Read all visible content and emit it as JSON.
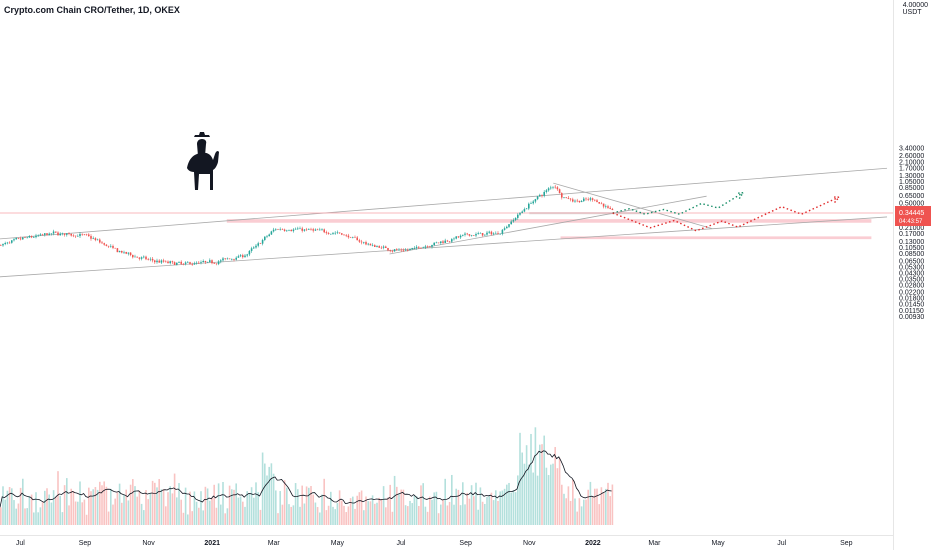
{
  "chart": {
    "title": "Crypto.com Chain CRO/Tether, 1D, OKEX",
    "currency": "USDT",
    "current_price": "0.34445",
    "countdown": "04:43:57",
    "top_label": "4.00000"
  },
  "colors": {
    "up": "#26a69a",
    "down": "#ef5350",
    "zone": "#f8bcc4",
    "trendline": "#a9a9a9",
    "price_line": "#f7a1a8",
    "price_badge": "#ef5350",
    "ma_line": "#131722",
    "green_path": "#1b8f6a",
    "red_path": "#e02a2a",
    "grey_zone": "#d6d6d6"
  },
  "icons": {
    "rider": "cowboy-on-horse-silhouette"
  },
  "chart_data": {
    "type": "candlestick",
    "scale": "log",
    "x_ticks": [
      "Jul",
      "Sep",
      "Nov",
      "2021",
      "Mar",
      "May",
      "Jul",
      "Sep",
      "Nov",
      "2022",
      "Mar",
      "May",
      "Jul",
      "Sep"
    ],
    "y_ticks": [
      "3.40000",
      "2.60000",
      "2.10000",
      "1.70000",
      "1.30000",
      "1.05000",
      "0.85000",
      "0.65000",
      "0.50000",
      "0.40000",
      "0.26000",
      "0.21000",
      "0.17000",
      "0.13000",
      "0.10500",
      "0.08500",
      "0.06500",
      "0.05300",
      "0.04300",
      "0.03500",
      "0.02800",
      "0.02200",
      "0.01800",
      "0.01450",
      "0.01150",
      "0.00930"
    ],
    "price_path": [
      [
        "2020-06-01",
        0.1
      ],
      [
        "2020-07-01",
        0.14
      ],
      [
        "2020-08-01",
        0.17
      ],
      [
        "2020-09-01",
        0.155
      ],
      [
        "2020-10-01",
        0.09
      ],
      [
        "2020-11-01",
        0.065
      ],
      [
        "2020-12-01",
        0.058
      ],
      [
        "2021-01-01",
        0.062
      ],
      [
        "2021-02-01",
        0.08
      ],
      [
        "2021-03-01",
        0.2
      ],
      [
        "2021-04-01",
        0.19
      ],
      [
        "2021-05-01",
        0.17
      ],
      [
        "2021-06-01",
        0.11
      ],
      [
        "2021-07-01",
        0.09
      ],
      [
        "2021-08-01",
        0.12
      ],
      [
        "2021-09-01",
        0.16
      ],
      [
        "2021-10-01",
        0.17
      ],
      [
        "2021-11-01",
        0.5
      ],
      [
        "2021-11-24",
        0.95
      ],
      [
        "2021-12-01",
        0.6
      ],
      [
        "2021-12-15",
        0.52
      ],
      [
        "2022-01-01",
        0.56
      ],
      [
        "2022-01-20",
        0.3445
      ]
    ],
    "zones": [
      {
        "from": "2021-01-15",
        "to": "2022-09-25",
        "low": 0.245,
        "high": 0.278
      },
      {
        "from": "2021-12-01",
        "to": "2022-09-25",
        "low": 0.138,
        "high": 0.152
      },
      {
        "from": "2021-11-01",
        "to": "2022-02-20",
        "low": 0.33,
        "high": 0.355
      }
    ],
    "trendlines": [
      {
        "from": [
          "2020-06-01",
          0.135
        ],
        "to": [
          "2022-10-10",
          1.65
        ]
      },
      {
        "from": [
          "2020-06-01",
          0.036
        ],
        "to": [
          "2022-10-10",
          0.3
        ]
      },
      {
        "from": [
          "2021-06-20",
          0.082
        ],
        "to": [
          "2022-04-20",
          0.62
        ]
      },
      {
        "from": [
          "2021-11-24",
          0.98
        ],
        "to": [
          "2022-04-25",
          0.2
        ]
      }
    ],
    "scenarios": [
      {
        "color": "green",
        "points": [
          [
            "2022-01-20",
            0.345
          ],
          [
            "2022-02-05",
            0.4
          ],
          [
            "2022-02-20",
            0.33
          ],
          [
            "2022-03-10",
            0.39
          ],
          [
            "2022-03-25",
            0.33
          ],
          [
            "2022-04-15",
            0.48
          ],
          [
            "2022-05-01",
            0.41
          ],
          [
            "2022-05-25",
            0.7
          ]
        ]
      },
      {
        "color": "red",
        "points": [
          [
            "2022-01-20",
            0.345
          ],
          [
            "2022-02-25",
            0.205
          ],
          [
            "2022-03-20",
            0.265
          ],
          [
            "2022-04-10",
            0.185
          ],
          [
            "2022-05-05",
            0.26
          ],
          [
            "2022-05-20",
            0.21
          ],
          [
            "2022-07-01",
            0.43
          ],
          [
            "2022-07-20",
            0.33
          ],
          [
            "2022-08-25",
            0.6
          ]
        ]
      }
    ],
    "current_price_line": 0.34445
  }
}
